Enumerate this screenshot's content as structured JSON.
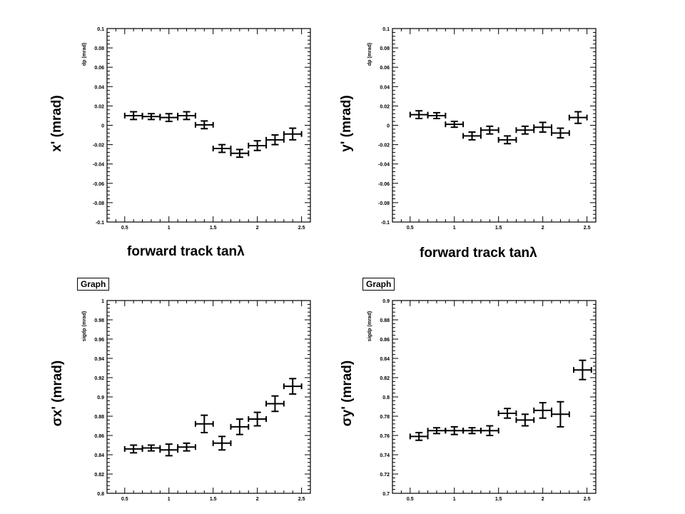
{
  "chart_data": [
    {
      "type": "scatter",
      "panel": "top-left",
      "inner_ylabel": "dp (mrad)",
      "outer_ylabel": "x' (mrad)",
      "xlabel": "forward track tanλ",
      "xlim": [
        0.3,
        2.6
      ],
      "ylim": [
        -0.1,
        0.1
      ],
      "xticks": [
        "0.5",
        "1",
        "1.5",
        "2",
        "2.5"
      ],
      "yticks": [
        "-0.1",
        "-0.08",
        "-0.06",
        "-0.04",
        "-0.02",
        "0",
        "0.02",
        "0.04",
        "0.06",
        "0.08",
        "0.1"
      ],
      "x": [
        0.6,
        0.8,
        1.0,
        1.2,
        1.4,
        1.6,
        1.8,
        2.0,
        2.2,
        2.4
      ],
      "y": [
        0.01,
        0.009,
        0.008,
        0.01,
        0.0005,
        -0.024,
        -0.029,
        -0.021,
        -0.015,
        -0.009
      ],
      "yerr": [
        0.004,
        0.003,
        0.004,
        0.004,
        0.004,
        0.004,
        0.004,
        0.005,
        0.005,
        0.006
      ],
      "xerr": 0.1
    },
    {
      "type": "scatter",
      "panel": "top-right",
      "inner_ylabel": "dp (mrad)",
      "outer_ylabel": "y' (mrad)",
      "xlabel": "forward track tanλ",
      "xlim": [
        0.3,
        2.6
      ],
      "ylim": [
        -0.1,
        0.1
      ],
      "xticks": [
        "0.5",
        "1",
        "1.5",
        "2",
        "2.5"
      ],
      "yticks": [
        "-0.1",
        "-0.08",
        "-0.06",
        "-0.04",
        "-0.02",
        "0",
        "0.02",
        "0.04",
        "0.06",
        "0.08",
        "0.1"
      ],
      "x": [
        0.6,
        0.8,
        1.0,
        1.2,
        1.4,
        1.6,
        1.8,
        2.0,
        2.2,
        2.4
      ],
      "y": [
        0.011,
        0.01,
        0.001,
        -0.011,
        -0.005,
        -0.015,
        -0.005,
        -0.002,
        -0.008,
        0.008
      ],
      "yerr": [
        0.004,
        0.003,
        0.003,
        0.004,
        0.004,
        0.004,
        0.004,
        0.005,
        0.005,
        0.006
      ],
      "xerr": 0.1
    },
    {
      "type": "scatter",
      "panel": "bottom-left",
      "legend_box": "Graph",
      "inner_ylabel": "sigdp (mrad)",
      "outer_ylabel": "σx' (mrad)",
      "xlabel": "",
      "xlim": [
        0.3,
        2.6
      ],
      "ylim": [
        0.8,
        1.0
      ],
      "xticks": [
        "0.5",
        "1",
        "1.5",
        "2",
        "2.5"
      ],
      "yticks": [
        "0.8",
        "0.82",
        "0.84",
        "0.86",
        "0.88",
        "0.9",
        "0.92",
        "0.94",
        "0.96",
        "0.98",
        "1"
      ],
      "x": [
        0.6,
        0.8,
        1.0,
        1.2,
        1.4,
        1.6,
        1.8,
        2.0,
        2.2,
        2.4
      ],
      "y": [
        0.846,
        0.847,
        0.845,
        0.848,
        0.872,
        0.852,
        0.869,
        0.877,
        0.893,
        0.911
      ],
      "yerr": [
        0.004,
        0.003,
        0.006,
        0.004,
        0.009,
        0.007,
        0.008,
        0.007,
        0.008,
        0.008
      ],
      "xerr": 0.1
    },
    {
      "type": "scatter",
      "panel": "bottom-right",
      "legend_box": "Graph",
      "inner_ylabel": "sigdp (mrad)",
      "outer_ylabel": "σy' (mrad)",
      "xlabel": "",
      "xlim": [
        0.3,
        2.6
      ],
      "ylim": [
        0.7,
        0.9
      ],
      "xticks": [
        "0.5",
        "1",
        "1.5",
        "2",
        "2.5"
      ],
      "yticks": [
        "0.7",
        "0.72",
        "0.74",
        "0.76",
        "0.78",
        "0.8",
        "0.82",
        "0.84",
        "0.86",
        "0.88",
        "0.9"
      ],
      "x": [
        0.6,
        0.8,
        1.0,
        1.2,
        1.4,
        1.6,
        1.8,
        2.0,
        2.2,
        2.45
      ],
      "y": [
        0.759,
        0.765,
        0.765,
        0.765,
        0.765,
        0.783,
        0.776,
        0.786,
        0.782,
        0.828
      ],
      "yerr": [
        0.004,
        0.003,
        0.004,
        0.003,
        0.005,
        0.005,
        0.006,
        0.008,
        0.013,
        0.01
      ],
      "xerr": 0.1
    }
  ],
  "labels": {
    "tl_y": "x' (mrad)",
    "tr_y": "y' (mrad)",
    "tl_x": "forward track tanλ",
    "tr_x": "forward track tanλ",
    "bl_y": "σx' (mrad)",
    "br_y": "σy' (mrad)",
    "bl_box": "Graph",
    "br_box": "Graph"
  },
  "colors": {
    "axis": "#000000",
    "background": "#ffffff"
  }
}
